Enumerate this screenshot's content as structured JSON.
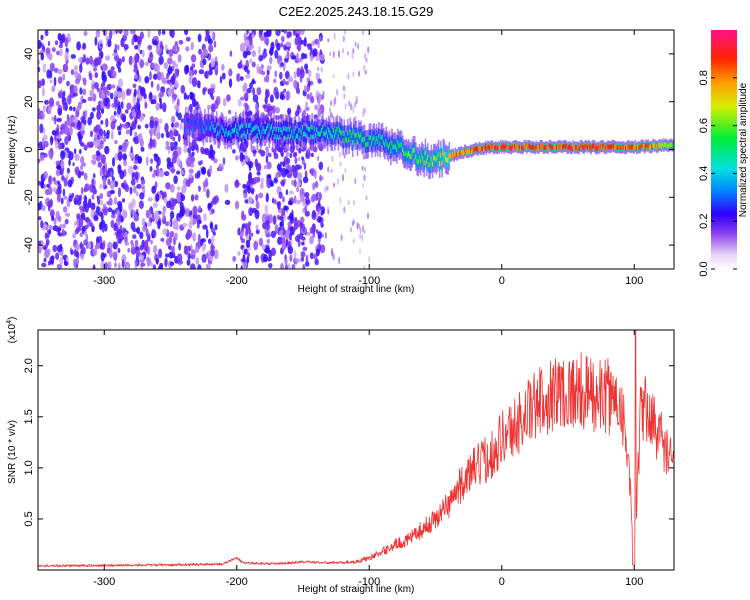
{
  "title": "C2E2.2025.243.18.15.G29",
  "chart_data": [
    {
      "type": "heatmap",
      "xlabel": "Height of straight line (km)",
      "ylabel": "Frequency (Hz)",
      "xlim": [
        -350,
        130
      ],
      "ylim": [
        -50,
        50
      ],
      "x_ticks": [
        "-300",
        "-200",
        "-100",
        "0",
        "100"
      ],
      "y_ticks": [
        "-40",
        "-20",
        "0",
        "20",
        "40"
      ],
      "colorbar": {
        "label": "Normalized spectral amplitude",
        "range": [
          0,
          1
        ],
        "ticks": [
          "0.0",
          "0.2",
          "0.4",
          "0.6",
          "0.8"
        ]
      },
      "ridge_frequency_hz": [
        [
          -235,
          10
        ],
        [
          -200,
          8
        ],
        [
          -160,
          7
        ],
        [
          -130,
          7
        ],
        [
          -110,
          5
        ],
        [
          -90,
          3
        ],
        [
          -70,
          -2
        ],
        [
          -55,
          -4
        ],
        [
          -40,
          -3
        ],
        [
          -30,
          -1
        ],
        [
          -10,
          1
        ],
        [
          10,
          1
        ],
        [
          40,
          1
        ],
        [
          70,
          1
        ],
        [
          100,
          1
        ],
        [
          130,
          2
        ]
      ],
      "ridge_peak_amplitude": [
        [
          -235,
          0.3
        ],
        [
          -200,
          0.45
        ],
        [
          -160,
          0.45
        ],
        [
          -130,
          0.5
        ],
        [
          -110,
          0.55
        ],
        [
          -90,
          0.5
        ],
        [
          -70,
          0.6
        ],
        [
          -50,
          0.65
        ],
        [
          -30,
          0.85
        ],
        [
          0,
          0.9
        ],
        [
          40,
          0.9
        ],
        [
          80,
          0.9
        ],
        [
          110,
          0.85
        ],
        [
          130,
          0.6
        ]
      ]
    },
    {
      "type": "line",
      "xlabel": "Height of straight line (km)",
      "ylabel": "SNR (10 * v/v)",
      "scale_label": "(x10",
      "scale_exponent": "4",
      "xlim": [
        -350,
        130
      ],
      "ylim": [
        0,
        23500
      ],
      "x_ticks": [
        "-300",
        "-200",
        "-100",
        "0",
        "100"
      ],
      "y_ticks": [
        "0.5",
        "1.0",
        "1.5",
        "2.0"
      ],
      "color": "#ee3333",
      "series": [
        {
          "x": [
            -350,
            -300,
            -250,
            -210,
            -200,
            -195,
            -170,
            -150,
            -130,
            -110,
            -100,
            -90,
            -80,
            -70,
            -60,
            -50,
            -40,
            -30,
            -20,
            -10,
            0,
            10,
            20,
            30,
            40,
            50,
            60,
            70,
            80,
            90,
            95,
            100,
            105,
            110,
            120,
            130
          ],
          "y": [
            400,
            450,
            500,
            600,
            1200,
            700,
            600,
            800,
            700,
            800,
            1200,
            1800,
            2500,
            3000,
            4000,
            5000,
            6500,
            8500,
            10000,
            11000,
            13000,
            14000,
            15500,
            16500,
            17500,
            17500,
            17500,
            17000,
            17000,
            16500,
            12000,
            500,
            16000,
            15500,
            13000,
            10000
          ]
        }
      ]
    }
  ]
}
